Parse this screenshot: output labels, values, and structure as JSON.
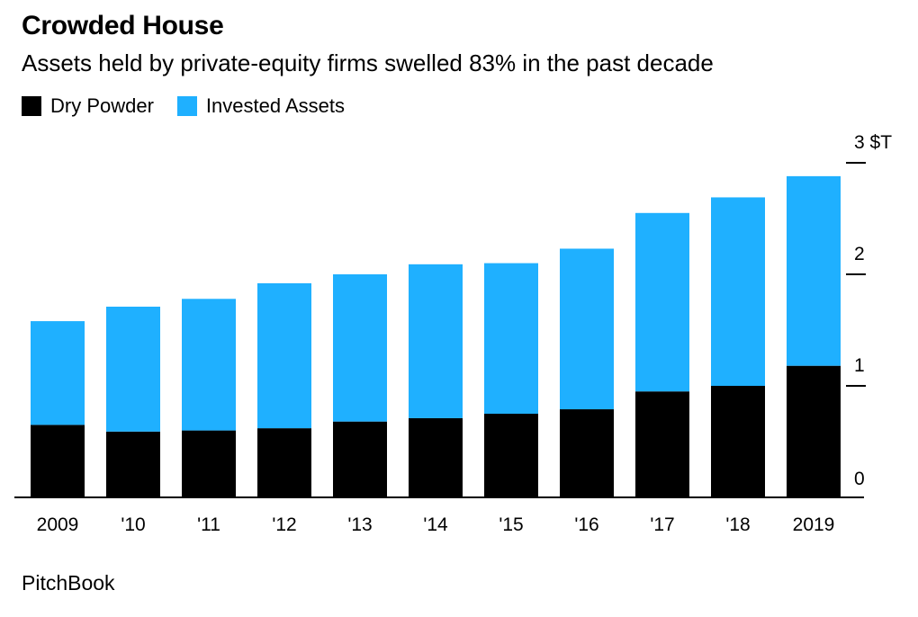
{
  "title": "Crowded House",
  "subtitle": "Assets held by private-equity firms swelled 83% in the past decade",
  "source": "PitchBook",
  "colors": {
    "dry_powder": "#000000",
    "invested_assets": "#1fb0ff",
    "axis": "#000000"
  },
  "chart_data": {
    "type": "bar",
    "stacked": true,
    "categories": [
      "2009",
      "'10",
      "'11",
      "'12",
      "'13",
      "'14",
      "'15",
      "'16",
      "'17",
      "'18",
      "2019"
    ],
    "series": [
      {
        "name": "Dry Powder",
        "color": "#000000",
        "values": [
          0.65,
          0.59,
          0.6,
          0.62,
          0.68,
          0.71,
          0.75,
          0.79,
          0.95,
          1.0,
          1.18
        ]
      },
      {
        "name": "Invested Assets",
        "color": "#1fb0ff",
        "values": [
          0.93,
          1.12,
          1.18,
          1.3,
          1.32,
          1.38,
          1.35,
          1.44,
          1.6,
          1.69,
          1.7
        ]
      }
    ],
    "y_axis": {
      "min": 0,
      "max": 3,
      "ticks": [
        0,
        1,
        2,
        3
      ],
      "tick_labels": [
        "0",
        "1",
        "2",
        "3 $T"
      ],
      "position": "right"
    },
    "legend_placement": "top-left",
    "grid": false
  }
}
